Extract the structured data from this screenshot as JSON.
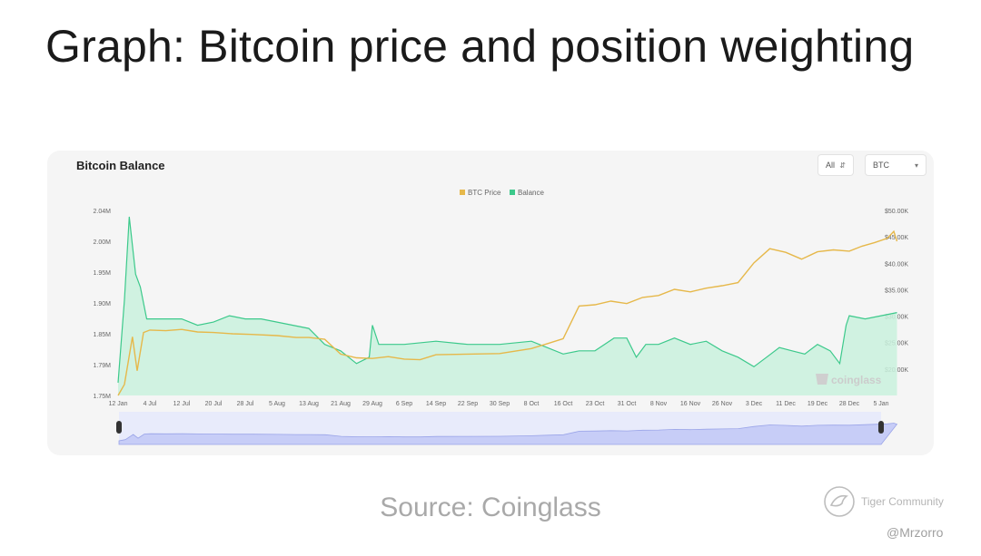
{
  "slide": {
    "title": "Graph: Bitcoin price and position weighting",
    "source": "Source: Coinglass",
    "brand": "Tiger Community",
    "handle": "@Mrzorro"
  },
  "panel": {
    "title": "Bitcoin Balance",
    "range_select": "All",
    "asset_select": "BTC",
    "watermark": "coinglass"
  },
  "colors": {
    "btc_price": "#e6b84a",
    "balance_line": "#3cc98b",
    "balance_fill": "#c9f1dd",
    "navigator_fill": "#c7cdf7",
    "navigator_line": "#9aa4e8"
  },
  "chart_data": {
    "type": "line",
    "title": "Bitcoin Balance",
    "legend_position": "top",
    "grid": false,
    "x_tick_labels": [
      "12 Jan",
      "4 Jul",
      "12 Jul",
      "20 Jul",
      "28 Jul",
      "5 Aug",
      "13 Aug",
      "21 Aug",
      "29 Aug",
      "6 Sep",
      "14 Sep",
      "22 Sep",
      "30 Sep",
      "8 Oct",
      "16 Oct",
      "23 Oct",
      "31 Oct",
      "8 Nov",
      "16 Nov",
      "26 Nov",
      "3 Dec",
      "11 Dec",
      "19 Dec",
      "28 Dec",
      "5 Jan"
    ],
    "y_left_ticks": [
      "2.04M",
      "2.00M",
      "1.95M",
      "1.90M",
      "1.85M",
      "1.79M",
      "1.75M"
    ],
    "y_left_range": [
      1.75,
      2.04
    ],
    "y_right_ticks": [
      "$50.00K",
      "$45.00K",
      "$40.00K",
      "$35.00K",
      "$30.00K",
      "$25.00K",
      "$20.00K"
    ],
    "y_right_range": [
      20000,
      50000
    ],
    "series": [
      {
        "name": "BTC Price",
        "axis": "right",
        "points": [
          [
            0,
            20000
          ],
          [
            0.2,
            21800
          ],
          [
            0.45,
            29500
          ],
          [
            0.6,
            24000
          ],
          [
            0.8,
            30200
          ],
          [
            1,
            30600
          ],
          [
            1.5,
            30500
          ],
          [
            2,
            30700
          ],
          [
            2.5,
            30300
          ],
          [
            3,
            30200
          ],
          [
            3.6,
            30000
          ],
          [
            4.2,
            29900
          ],
          [
            5,
            29700
          ],
          [
            5.6,
            29400
          ],
          [
            6,
            29400
          ],
          [
            6.5,
            29100
          ],
          [
            7,
            26700
          ],
          [
            7.5,
            26100
          ],
          [
            8,
            26000
          ],
          [
            8.5,
            26300
          ],
          [
            9,
            25900
          ],
          [
            9.5,
            25800
          ],
          [
            10,
            26600
          ],
          [
            11,
            26700
          ],
          [
            12,
            26800
          ],
          [
            13,
            27600
          ],
          [
            13.5,
            28400
          ],
          [
            14,
            29200
          ],
          [
            14.5,
            34500
          ],
          [
            15,
            34700
          ],
          [
            15.5,
            35300
          ],
          [
            16,
            34900
          ],
          [
            16.5,
            35900
          ],
          [
            17,
            36200
          ],
          [
            17.5,
            37200
          ],
          [
            18,
            36800
          ],
          [
            18.5,
            37400
          ],
          [
            19,
            37800
          ],
          [
            19.5,
            38300
          ],
          [
            20,
            41500
          ],
          [
            20.5,
            43800
          ],
          [
            21,
            43200
          ],
          [
            21.5,
            42100
          ],
          [
            22,
            43300
          ],
          [
            22.5,
            43600
          ],
          [
            23,
            43400
          ],
          [
            23.4,
            44200
          ],
          [
            23.8,
            44800
          ],
          [
            24.2,
            45500
          ],
          [
            24.4,
            46600
          ],
          [
            24.5,
            45000
          ]
        ]
      },
      {
        "name": "Balance",
        "axis": "left",
        "points": [
          [
            0,
            1.77
          ],
          [
            0.2,
            1.9
          ],
          [
            0.35,
            2.03
          ],
          [
            0.55,
            1.94
          ],
          [
            0.7,
            1.92
          ],
          [
            0.9,
            1.87
          ],
          [
            1.5,
            1.87
          ],
          [
            2,
            1.87
          ],
          [
            2.5,
            1.86
          ],
          [
            3,
            1.865
          ],
          [
            3.5,
            1.875
          ],
          [
            4,
            1.87
          ],
          [
            4.5,
            1.87
          ],
          [
            5,
            1.865
          ],
          [
            5.5,
            1.86
          ],
          [
            6,
            1.855
          ],
          [
            6.5,
            1.83
          ],
          [
            7,
            1.82
          ],
          [
            7.5,
            1.8
          ],
          [
            7.9,
            1.81
          ],
          [
            8,
            1.86
          ],
          [
            8.2,
            1.83
          ],
          [
            9,
            1.83
          ],
          [
            10,
            1.835
          ],
          [
            11,
            1.83
          ],
          [
            12,
            1.83
          ],
          [
            13,
            1.835
          ],
          [
            14,
            1.815
          ],
          [
            14.5,
            1.82
          ],
          [
            15,
            1.82
          ],
          [
            15.6,
            1.84
          ],
          [
            16,
            1.84
          ],
          [
            16.3,
            1.81
          ],
          [
            16.6,
            1.83
          ],
          [
            17,
            1.83
          ],
          [
            17.5,
            1.84
          ],
          [
            18,
            1.83
          ],
          [
            18.5,
            1.835
          ],
          [
            19,
            1.82
          ],
          [
            19.5,
            1.81
          ],
          [
            20,
            1.795
          ],
          [
            20.4,
            1.81
          ],
          [
            20.8,
            1.825
          ],
          [
            21.2,
            1.82
          ],
          [
            21.6,
            1.815
          ],
          [
            22,
            1.83
          ],
          [
            22.4,
            1.82
          ],
          [
            22.7,
            1.8
          ],
          [
            22.9,
            1.86
          ],
          [
            23,
            1.875
          ],
          [
            23.5,
            1.87
          ],
          [
            24,
            1.875
          ],
          [
            24.5,
            1.88
          ]
        ]
      }
    ],
    "navigator": {
      "series_name": "Balance",
      "handles": [
        "start",
        "end"
      ]
    }
  }
}
